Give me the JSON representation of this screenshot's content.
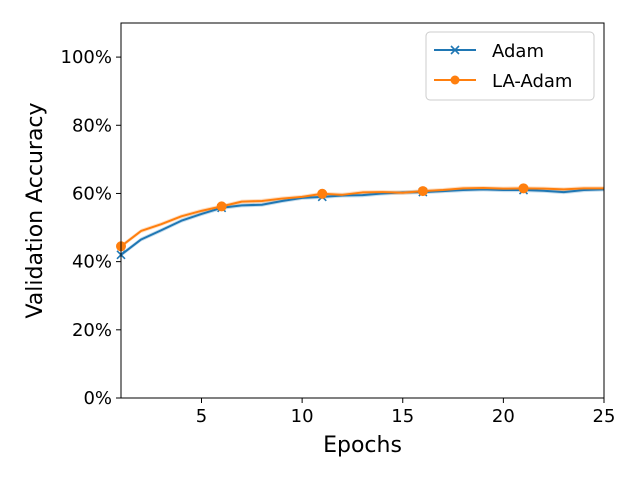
{
  "chart_data": {
    "type": "line",
    "title": "",
    "xlabel": "Epochs",
    "ylabel": "Validation Accuracy",
    "xlim": [
      1,
      25
    ],
    "ylim": [
      0,
      110
    ],
    "xticks": [
      5,
      10,
      15,
      20,
      25
    ],
    "yticks": [
      0,
      20,
      40,
      60,
      80,
      100
    ],
    "ytick_labels": [
      "0%",
      "20%",
      "40%",
      "60%",
      "80%",
      "100%"
    ],
    "xtick_labels": [
      "5",
      "10",
      "15",
      "20",
      "25"
    ],
    "grid": false,
    "legend_position": "top-right",
    "x": [
      1,
      2,
      3,
      4,
      5,
      6,
      7,
      8,
      9,
      10,
      11,
      12,
      13,
      14,
      15,
      16,
      17,
      18,
      19,
      20,
      21,
      22,
      23,
      24,
      25
    ],
    "series": [
      {
        "name": "Adam",
        "color": "#1f77b4",
        "marker": "x",
        "marker_every": [
          1,
          6,
          11,
          16,
          21
        ],
        "values": [
          42.0,
          46.5,
          49.2,
          52.0,
          54.0,
          55.8,
          56.5,
          56.7,
          57.8,
          58.7,
          59.0,
          59.4,
          59.5,
          60.0,
          60.3,
          60.4,
          60.7,
          61.0,
          61.2,
          61.0,
          61.0,
          60.8,
          60.4,
          61.0,
          61.2
        ]
      },
      {
        "name": "LA-Adam",
        "color": "#ff7f0e",
        "marker": "o",
        "marker_every": [
          1,
          6,
          11,
          16,
          21
        ],
        "values": [
          44.5,
          49.0,
          51.0,
          53.3,
          54.9,
          56.2,
          57.6,
          57.8,
          58.5,
          59.0,
          59.9,
          59.6,
          60.3,
          60.4,
          60.2,
          60.7,
          61.0,
          61.5,
          61.6,
          61.4,
          61.5,
          61.4,
          61.2,
          61.5,
          61.5
        ]
      }
    ]
  }
}
